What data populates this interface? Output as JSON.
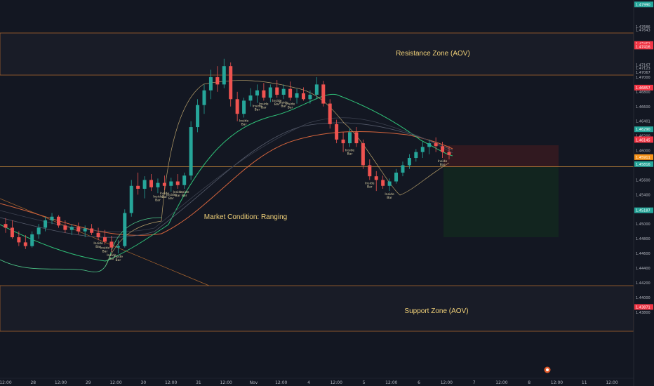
{
  "chart_data": {
    "type": "candlestick",
    "ylim": [
      1.429,
      1.4805
    ],
    "x_ticks": [
      "12:00",
      "28",
      "12:00",
      "29",
      "12:00",
      "30",
      "12:00",
      "31",
      "12:00",
      "Nov",
      "12:00",
      "4",
      "12:00",
      "5",
      "12:00",
      "6",
      "12:00",
      "7",
      "12:00",
      "8",
      "12:00",
      "11",
      "12:00"
    ],
    "y_ticks": [
      {
        "label": "1.47686",
        "value": 1.47686
      },
      {
        "label": "1.47643",
        "value": 1.47643
      },
      {
        "label": "1.47167",
        "value": 1.47167
      },
      {
        "label": "1.47123",
        "value": 1.47123
      },
      {
        "label": "1.47067",
        "value": 1.47067
      },
      {
        "label": "1.47000",
        "value": 1.47
      },
      {
        "label": "1.46800",
        "value": 1.468
      },
      {
        "label": "1.46600",
        "value": 1.466
      },
      {
        "label": "1.46401",
        "value": 1.46401
      },
      {
        "label": "1.46200",
        "value": 1.462
      },
      {
        "label": "1.46000",
        "value": 1.46
      },
      {
        "label": "1.45800",
        "value": 1.458
      },
      {
        "label": "1.45600",
        "value": 1.456
      },
      {
        "label": "1.45400",
        "value": 1.454
      },
      {
        "label": "1.45000",
        "value": 1.45
      },
      {
        "label": "1.44800",
        "value": 1.448
      },
      {
        "label": "1.44600",
        "value": 1.446
      },
      {
        "label": "1.44400",
        "value": 1.444
      },
      {
        "label": "1.44200",
        "value": 1.442
      },
      {
        "label": "1.44000",
        "value": 1.44
      },
      {
        "label": "1.43800",
        "value": 1.438
      }
    ],
    "price_badges": [
      {
        "label": "1.47990",
        "value": 1.4799,
        "color": "#26a69a"
      },
      {
        "label": "1.47452",
        "value": 1.47452,
        "color": "#f23645"
      },
      {
        "label": "1.47416",
        "value": 1.47416,
        "color": "#f23645"
      },
      {
        "label": "1.46857",
        "value": 1.46857,
        "color": "#f23645"
      },
      {
        "label": "1.46290",
        "value": 1.4629,
        "color": "#26a69a"
      },
      {
        "label": "1.46154",
        "value": 1.46154,
        "color": "#f23645"
      },
      {
        "label": "1.46145",
        "value": 1.46145,
        "color": "#f23645"
      },
      {
        "label": "1.45911",
        "value": 1.45911,
        "color": "#f7931a"
      },
      {
        "label": "1.45816",
        "value": 1.45816,
        "color": "#26a69a"
      },
      {
        "label": "1.45187",
        "value": 1.45187,
        "color": "#26a69a"
      },
      {
        "label": "1.43871",
        "value": 1.43871,
        "color": "#f23645"
      }
    ],
    "zones": [
      {
        "name": "Resistance Zone (AOV)",
        "top": 1.4743,
        "bottom": 1.4689
      },
      {
        "name": "Support Zone (AOV)",
        "top": 1.4468,
        "bottom": 1.4422
      }
    ],
    "annotations": [
      "Market Condition: Ranging"
    ],
    "pattern_label": [
      "Inside",
      "Bar"
    ],
    "ohlc": [
      [
        1.45,
        1.4508,
        1.4488,
        1.4495
      ],
      [
        1.4495,
        1.4505,
        1.448,
        1.4482
      ],
      [
        1.4482,
        1.449,
        1.447,
        1.4475
      ],
      [
        1.4475,
        1.4485,
        1.4466,
        1.447
      ],
      [
        1.447,
        1.449,
        1.4468,
        1.4486
      ],
      [
        1.4486,
        1.45,
        1.448,
        1.4495
      ],
      [
        1.4495,
        1.451,
        1.449,
        1.4505
      ],
      [
        1.4505,
        1.4515,
        1.45,
        1.451
      ],
      [
        1.451,
        1.4512,
        1.4495,
        1.4498
      ],
      [
        1.4498,
        1.4505,
        1.4488,
        1.4492
      ],
      [
        1.4492,
        1.45,
        1.4485,
        1.4496
      ],
      [
        1.4496,
        1.4502,
        1.4486,
        1.449
      ],
      [
        1.449,
        1.4498,
        1.4482,
        1.4494
      ],
      [
        1.4494,
        1.45,
        1.4485,
        1.4488
      ],
      [
        1.4488,
        1.4495,
        1.4478,
        1.4482
      ],
      [
        1.4482,
        1.4492,
        1.4472,
        1.4476
      ],
      [
        1.4476,
        1.4484,
        1.4462,
        1.4468
      ],
      [
        1.4468,
        1.4478,
        1.446,
        1.447
      ],
      [
        1.447,
        1.452,
        1.4468,
        1.4515
      ],
      [
        1.4515,
        1.456,
        1.451,
        1.4552
      ],
      [
        1.4552,
        1.457,
        1.454,
        1.4548
      ],
      [
        1.4548,
        1.4565,
        1.4535,
        1.456
      ],
      [
        1.456,
        1.4568,
        1.4545,
        1.455
      ],
      [
        1.455,
        1.4562,
        1.4542,
        1.4556
      ],
      [
        1.4556,
        1.4566,
        1.4546,
        1.4552
      ],
      [
        1.4552,
        1.4563,
        1.4544,
        1.4558
      ],
      [
        1.4558,
        1.4568,
        1.4548,
        1.4553
      ],
      [
        1.4553,
        1.457,
        1.4548,
        1.4566
      ],
      [
        1.4566,
        1.464,
        1.456,
        1.4632
      ],
      [
        1.4632,
        1.467,
        1.4625,
        1.4662
      ],
      [
        1.4662,
        1.469,
        1.465,
        1.4682
      ],
      [
        1.4682,
        1.471,
        1.467,
        1.47
      ],
      [
        1.47,
        1.4715,
        1.468,
        1.469
      ],
      [
        1.469,
        1.4725,
        1.4685,
        1.4715
      ],
      [
        1.4715,
        1.472,
        1.466,
        1.467
      ],
      [
        1.467,
        1.468,
        1.464,
        1.465
      ],
      [
        1.465,
        1.4672,
        1.4645,
        1.4668
      ],
      [
        1.4668,
        1.4685,
        1.466,
        1.4675
      ],
      [
        1.4675,
        1.469,
        1.4665,
        1.4682
      ],
      [
        1.4682,
        1.4692,
        1.4668,
        1.4672
      ],
      [
        1.4672,
        1.469,
        1.4666,
        1.4686
      ],
      [
        1.4686,
        1.4696,
        1.4672,
        1.4676
      ],
      [
        1.4676,
        1.469,
        1.467,
        1.4684
      ],
      [
        1.4684,
        1.4694,
        1.4668,
        1.4672
      ],
      [
        1.4672,
        1.4684,
        1.4664,
        1.4678
      ],
      [
        1.4678,
        1.4686,
        1.4668,
        1.467
      ],
      [
        1.467,
        1.4682,
        1.4664,
        1.4676
      ],
      [
        1.4676,
        1.47,
        1.467,
        1.469
      ],
      [
        1.469,
        1.4695,
        1.466,
        1.4664
      ],
      [
        1.4664,
        1.467,
        1.463,
        1.4636
      ],
      [
        1.4636,
        1.4642,
        1.461,
        1.4615
      ],
      [
        1.4615,
        1.4625,
        1.4598,
        1.461
      ],
      [
        1.461,
        1.463,
        1.4605,
        1.4625
      ],
      [
        1.4625,
        1.4632,
        1.4605,
        1.461
      ],
      [
        1.461,
        1.4615,
        1.4575,
        1.458
      ],
      [
        1.458,
        1.4588,
        1.456,
        1.4565
      ],
      [
        1.4565,
        1.4572,
        1.4545,
        1.456
      ],
      [
        1.456,
        1.4566,
        1.4548,
        1.4552
      ],
      [
        1.4552,
        1.4562,
        1.4545,
        1.4558
      ],
      [
        1.4558,
        1.4575,
        1.4555,
        1.457
      ],
      [
        1.457,
        1.4585,
        1.4565,
        1.458
      ],
      [
        1.458,
        1.4595,
        1.4575,
        1.459
      ],
      [
        1.459,
        1.4602,
        1.4585,
        1.4598
      ],
      [
        1.4598,
        1.4612,
        1.459,
        1.4605
      ],
      [
        1.4605,
        1.4615,
        1.4595,
        1.461
      ],
      [
        1.461,
        1.4618,
        1.4598,
        1.4606
      ],
      [
        1.4606,
        1.4612,
        1.459,
        1.4598
      ],
      [
        1.4598,
        1.4606,
        1.4588,
        1.4594
      ]
    ]
  }
}
